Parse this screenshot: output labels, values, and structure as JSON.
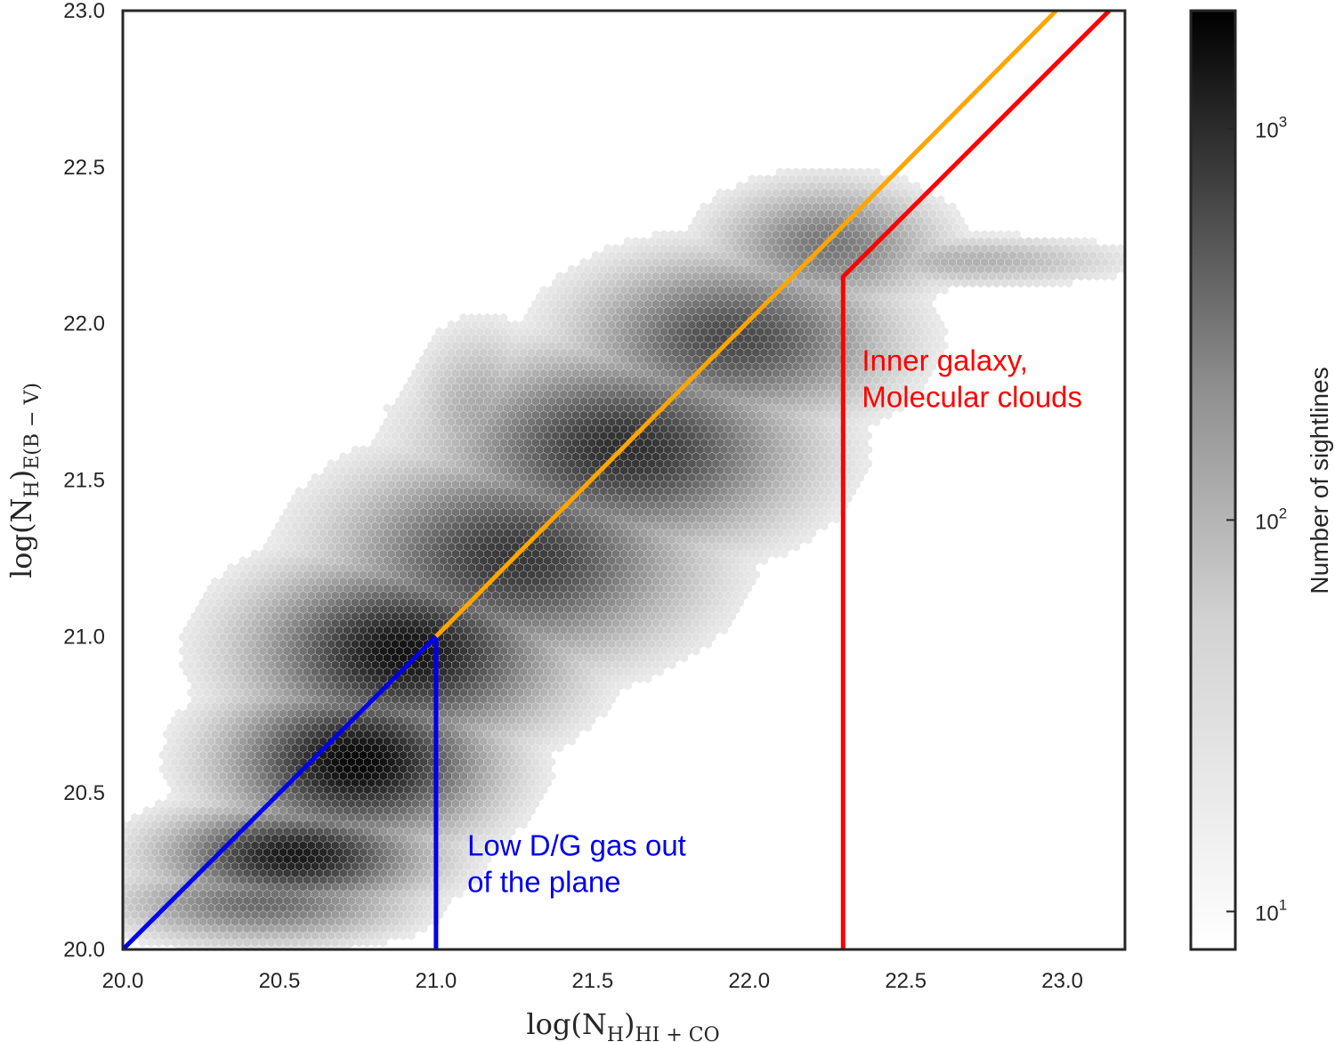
{
  "chart_data": {
    "type": "heatmap",
    "subtype": "hexbin",
    "title": "",
    "xlabel_main": "log(N",
    "xlabel_sub1": "H",
    "xlabel_close": ")",
    "xlabel_sub2": "HI + CO",
    "ylabel_main": "log(N",
    "ylabel_sub1": "H",
    "ylabel_close": ")",
    "ylabel_sub2": "E(B − V)",
    "xlim": [
      20.0,
      23.2
    ],
    "ylim": [
      20.0,
      23.0
    ],
    "xticks": [
      "20.0",
      "20.5",
      "21.0",
      "21.5",
      "22.0",
      "22.5",
      "23.0"
    ],
    "yticks": [
      "20.0",
      "20.5",
      "21.0",
      "21.5",
      "22.0",
      "22.5",
      "23.0"
    ],
    "grid": false,
    "colormap": "greys",
    "colorbar": {
      "label": "Number of sightlines",
      "scale": "log",
      "range": [
        8,
        2000
      ],
      "ticks": [
        {
          "value": 10,
          "base": "10",
          "exp": "1"
        },
        {
          "value": 100,
          "base": "10",
          "exp": "2"
        },
        {
          "value": 1000,
          "base": "10",
          "exp": "3"
        }
      ]
    },
    "density_ridge": [
      {
        "x": 20.55,
        "y": 20.3,
        "spread_x": 0.26,
        "spread_y": 0.1,
        "peak": 0.92
      },
      {
        "x": 20.75,
        "y": 20.6,
        "spread_x": 0.26,
        "spread_y": 0.16,
        "peak": 1.0
      },
      {
        "x": 20.9,
        "y": 20.95,
        "spread_x": 0.3,
        "spread_y": 0.18,
        "peak": 0.95
      },
      {
        "x": 21.25,
        "y": 21.25,
        "spread_x": 0.34,
        "spread_y": 0.2,
        "peak": 0.78
      },
      {
        "x": 21.6,
        "y": 21.6,
        "spread_x": 0.34,
        "spread_y": 0.19,
        "peak": 0.82
      },
      {
        "x": 21.95,
        "y": 21.95,
        "spread_x": 0.3,
        "spread_y": 0.16,
        "peak": 0.7
      },
      {
        "x": 22.25,
        "y": 22.25,
        "spread_x": 0.22,
        "spread_y": 0.12,
        "peak": 0.5
      },
      {
        "x": 22.7,
        "y": 22.2,
        "spread_x": 0.32,
        "spread_y": 0.05,
        "peak": 0.26
      },
      {
        "x": 21.15,
        "y": 21.7,
        "spread_x": 0.14,
        "spread_y": 0.18,
        "peak": 0.3
      },
      {
        "x": 20.45,
        "y": 20.15,
        "spread_x": 0.28,
        "spread_y": 0.08,
        "peak": 0.55
      }
    ],
    "series": [
      {
        "name": "",
        "color": "#0000ee",
        "x": [
          20.0,
          21.0,
          21.0
        ],
        "y": [
          20.0,
          21.0,
          20.0
        ]
      },
      {
        "name": "",
        "color": "#ffa500",
        "x": [
          21.0,
          22.98
        ],
        "y": [
          21.0,
          23.0
        ]
      },
      {
        "name": "",
        "color": "#ff0000",
        "x": [
          22.3,
          22.3,
          23.15
        ],
        "y": [
          20.0,
          22.15,
          23.0
        ]
      }
    ],
    "annotations": [
      {
        "lines": [
          "Low D/G gas out",
          "of the plane"
        ],
        "color": "#0000ee",
        "x": 21.1,
        "y": 20.3
      },
      {
        "lines": [
          "Inner galaxy,",
          "Molecular clouds"
        ],
        "color": "#ff0000",
        "x": 22.36,
        "y": 21.85
      }
    ]
  }
}
